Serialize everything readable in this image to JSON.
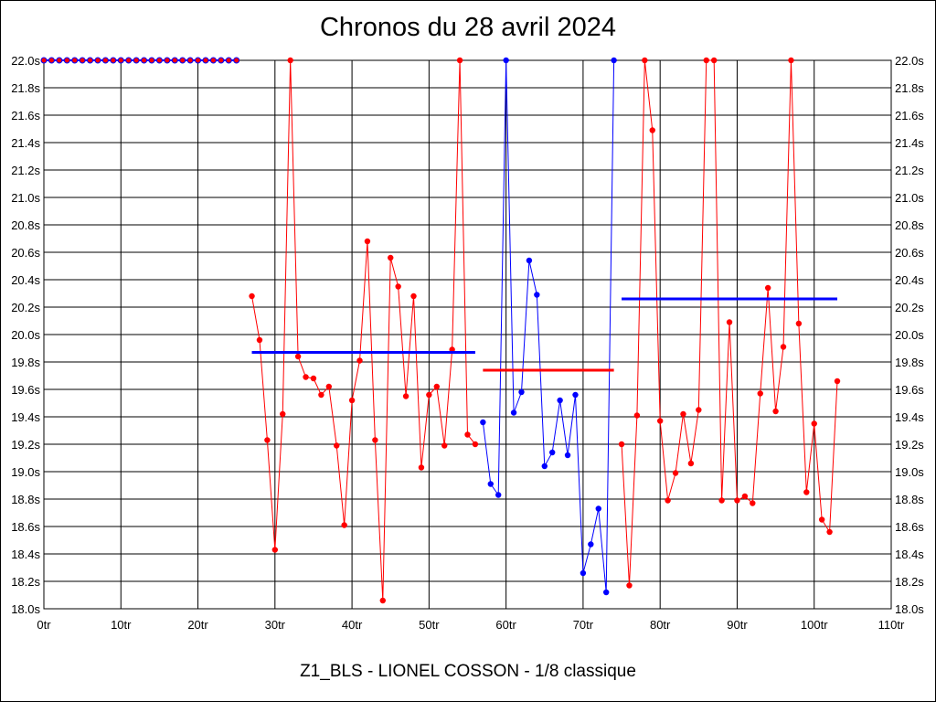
{
  "chart_data": {
    "type": "line",
    "title": "Chronos du 28 avril 2024",
    "footer": "Z1_BLS - LIONEL COSSON - 1/8 classique",
    "xlim": [
      0,
      110
    ],
    "ylim": [
      18.0,
      22.0
    ],
    "x_ticks": [
      {
        "v": 0,
        "label": "0tr"
      },
      {
        "v": 10,
        "label": "10tr"
      },
      {
        "v": 20,
        "label": "20tr"
      },
      {
        "v": 30,
        "label": "30tr"
      },
      {
        "v": 40,
        "label": "40tr"
      },
      {
        "v": 50,
        "label": "50tr"
      },
      {
        "v": 60,
        "label": "60tr"
      },
      {
        "v": 70,
        "label": "70tr"
      },
      {
        "v": 80,
        "label": "80tr"
      },
      {
        "v": 90,
        "label": "90tr"
      },
      {
        "v": 100,
        "label": "100tr"
      },
      {
        "v": 110,
        "label": "110tr"
      }
    ],
    "y_ticks": [
      {
        "v": 18.0,
        "label": "18.0s"
      },
      {
        "v": 18.2,
        "label": "18.2s"
      },
      {
        "v": 18.4,
        "label": "18.4s"
      },
      {
        "v": 18.6,
        "label": "18.6s"
      },
      {
        "v": 18.8,
        "label": "18.8s"
      },
      {
        "v": 19.0,
        "label": "19.0s"
      },
      {
        "v": 19.2,
        "label": "19.2s"
      },
      {
        "v": 19.4,
        "label": "19.4s"
      },
      {
        "v": 19.6,
        "label": "19.6s"
      },
      {
        "v": 19.8,
        "label": "19.8s"
      },
      {
        "v": 20.0,
        "label": "20.0s"
      },
      {
        "v": 20.2,
        "label": "20.2s"
      },
      {
        "v": 20.4,
        "label": "20.4s"
      },
      {
        "v": 20.6,
        "label": "20.6s"
      },
      {
        "v": 20.8,
        "label": "20.8s"
      },
      {
        "v": 21.0,
        "label": "21.0s"
      },
      {
        "v": 21.2,
        "label": "21.2s"
      },
      {
        "v": 21.4,
        "label": "21.4s"
      },
      {
        "v": 21.6,
        "label": "21.6s"
      },
      {
        "v": 21.8,
        "label": "21.8s"
      },
      {
        "v": 22.0,
        "label": "22.0s"
      }
    ],
    "grid": true,
    "colors": {
      "red": "#ff0000",
      "blue": "#0000ff"
    },
    "capped_row": {
      "x": [
        0,
        1,
        2,
        3,
        4,
        5,
        6,
        7,
        8,
        9,
        10,
        11,
        12,
        13,
        14,
        15,
        16,
        17,
        18,
        19,
        20,
        21,
        22,
        23,
        24,
        25
      ],
      "y": 22.0,
      "line_color": "#0000ff",
      "marker_color": "#ff0000"
    },
    "series": [
      {
        "color": "#ff0000",
        "x": [
          27,
          28,
          29,
          30,
          31,
          32,
          33,
          34,
          35,
          36,
          37,
          38,
          39,
          40,
          41,
          42,
          43,
          44,
          45,
          46,
          47,
          48,
          49,
          50,
          51,
          52,
          53,
          54,
          55,
          56
        ],
        "y": [
          20.28,
          19.96,
          19.23,
          18.43,
          19.42,
          22.0,
          19.84,
          19.69,
          19.68,
          19.56,
          19.62,
          19.19,
          18.61,
          19.52,
          19.81,
          20.68,
          19.23,
          18.06,
          20.56,
          20.35,
          19.55,
          20.28,
          19.03,
          19.56,
          19.62,
          19.19,
          19.89,
          22.0,
          19.27,
          19.2
        ]
      },
      {
        "color": "#0000ff",
        "x": [
          57,
          58,
          59,
          60,
          61,
          62,
          63,
          64,
          65,
          66,
          67,
          68,
          69,
          70,
          71,
          72,
          73,
          74
        ],
        "y": [
          19.36,
          18.91,
          18.83,
          22.0,
          19.43,
          19.58,
          20.54,
          20.29,
          19.04,
          19.14,
          19.52,
          19.12,
          19.56,
          18.26,
          18.47,
          18.73,
          18.12,
          22.0
        ]
      },
      {
        "color": "#ff0000",
        "x": [
          75,
          76,
          77,
          78,
          79,
          80,
          81,
          82,
          83,
          84,
          85,
          86,
          87,
          88,
          89,
          90,
          91,
          92,
          93,
          94,
          95,
          96,
          97,
          98,
          99,
          100,
          101,
          102,
          103
        ],
        "y": [
          19.2,
          18.17,
          19.41,
          22.0,
          21.49,
          19.37,
          18.79,
          18.99,
          19.42,
          19.06,
          19.45,
          22.0,
          22.0,
          18.79,
          20.09,
          18.79,
          18.82,
          18.77,
          19.57,
          20.34,
          19.44,
          19.91,
          22.0,
          20.08,
          18.85,
          19.35,
          18.65,
          18.56,
          19.66
        ]
      }
    ],
    "averages": [
      {
        "color": "#0000ff",
        "x1": 27,
        "x2": 56,
        "y": 19.87
      },
      {
        "color": "#ff0000",
        "x1": 57,
        "x2": 74,
        "y": 19.74
      },
      {
        "color": "#0000ff",
        "x1": 75,
        "x2": 103,
        "y": 20.26
      }
    ]
  }
}
